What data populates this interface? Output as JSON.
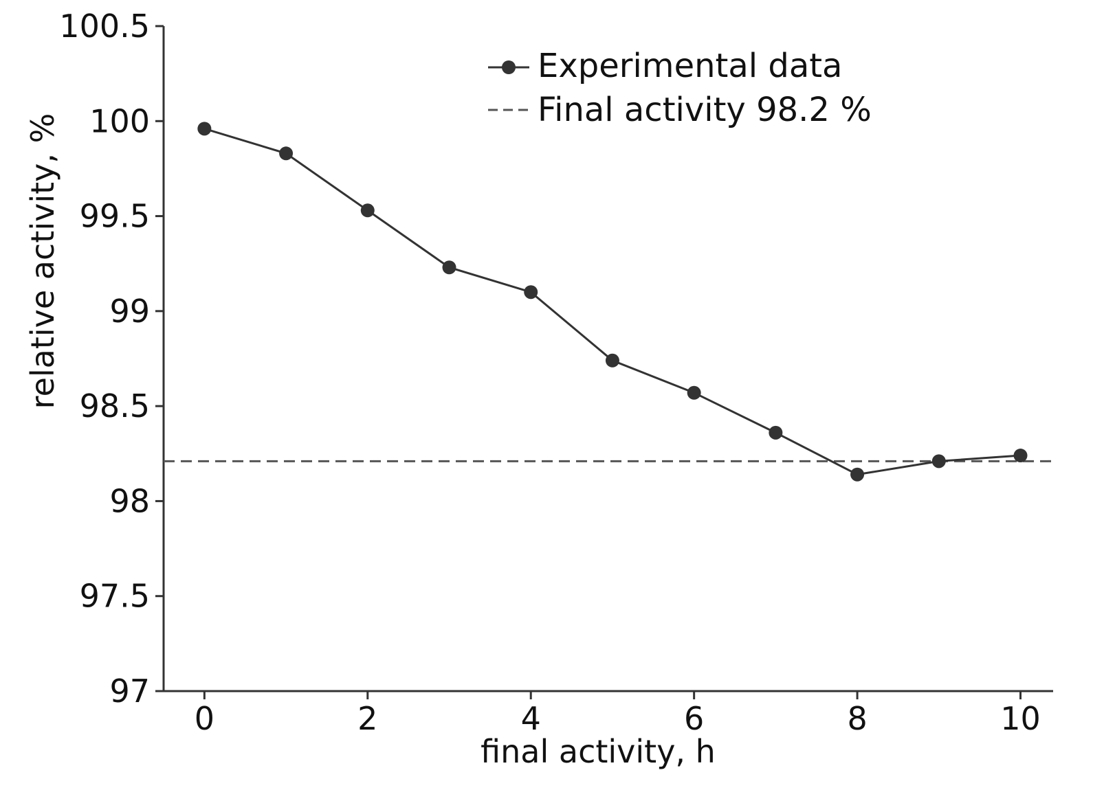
{
  "chart_data": {
    "type": "line",
    "title": "",
    "xlabel": "final activity, h",
    "ylabel": "relative activity, %",
    "xlim": [
      -0.5,
      10.4
    ],
    "ylim": [
      97,
      100.5
    ],
    "xticks": [
      0,
      2,
      4,
      6,
      8,
      10
    ],
    "xtick_labels": [
      "0",
      "2",
      "4",
      "6",
      "8",
      "10"
    ],
    "yticks": [
      97,
      97.5,
      98,
      98.5,
      99,
      99.5,
      100,
      100.5
    ],
    "ytick_labels": [
      "97",
      "97.5",
      "98",
      "98.5",
      "99",
      "99.5",
      "100",
      "100.5"
    ],
    "grid": false,
    "legend_position": "top-right",
    "series": [
      {
        "name": "Experimental data",
        "x": [
          0,
          1,
          2,
          3,
          4,
          5,
          6,
          7,
          8,
          9,
          10
        ],
        "values": [
          99.96,
          99.83,
          99.53,
          99.23,
          99.1,
          98.74,
          98.57,
          98.36,
          98.14,
          98.21,
          98.24
        ],
        "color": "#333333",
        "style": "solid-markers"
      }
    ],
    "reference_lines": [
      {
        "name": "Final activity 98.2 %",
        "y": 98.21,
        "color": "#555555",
        "style": "dashed"
      }
    ]
  }
}
